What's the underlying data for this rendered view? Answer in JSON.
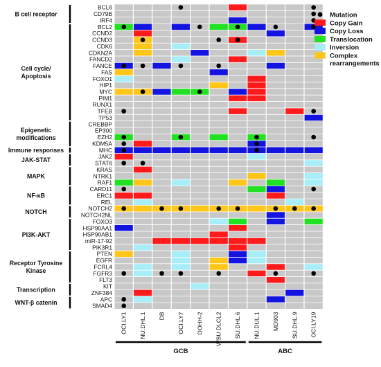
{
  "chart_data": {
    "type": "heatmap",
    "legend": {
      "placement": "top-right",
      "items": [
        {
          "key": "M",
          "label": "Mutation",
          "kind": "dot",
          "color": "#000000"
        },
        {
          "key": "G",
          "label": "Copy Gain",
          "kind": "box",
          "color": "#ff1b1b"
        },
        {
          "key": "L",
          "label": "Copy Loss",
          "kind": "box",
          "color": "#1414e0"
        },
        {
          "key": "T",
          "label": "Translocation",
          "kind": "box",
          "color": "#22e022"
        },
        {
          "key": "I",
          "label": "Inversion",
          "kind": "box",
          "color": "#a8eef8"
        },
        {
          "key": "C",
          "label": "Complex rearrangements",
          "kind": "box",
          "color": "#ffc61a"
        }
      ]
    },
    "colors": {
      "background": "#c8c8c8",
      "grid": "#ffffff"
    },
    "cell_lines": [
      "OCI.LY1",
      "NU.DHL.1",
      "DB",
      "OCI.LY7",
      "DOHH-2",
      "WSU DLCL2",
      "SU.DHL.6",
      "NU.DUL.1",
      "MD903",
      "SU.DHL.9",
      "OCI.LY19"
    ],
    "groups": [
      {
        "label": "GCB",
        "columns": [
          0,
          6
        ]
      },
      {
        "label": "ABC",
        "columns": [
          7,
          10
        ]
      }
    ],
    "genes": [
      "BCL6",
      "CD79B",
      "IRF4",
      "BCL2",
      "CCND2",
      "CCND3",
      "CDK6",
      "CDKN2A",
      "FANCD2",
      "FANCE",
      "FAS",
      "FOXO1",
      "HIP1",
      "MYC",
      "PIM1",
      "RUNX1",
      "TFEB",
      "TP53",
      "CREBBP",
      "EP300",
      "EZH2",
      "KDM5A",
      "MHC",
      "JAK2",
      "STAT6",
      "KRAS",
      "NTRK1",
      "RAF1",
      "CARD11",
      "ERC1",
      "REL",
      "NOTCH2",
      "NOTCH2NL",
      "FOXO3",
      "HSP90AA1",
      "HSP90AB1",
      "miR-17-92",
      "PIK3R1",
      "PTEN",
      "EGFR",
      "FCRL4",
      "FGFR3",
      "FLT3",
      "KIT",
      "ZNF384",
      "APC",
      "SMAD4"
    ],
    "categories": [
      {
        "label": "B cell receptor",
        "rows": [
          0,
          2
        ]
      },
      {
        "label": "Cell cycle/ Apoptosis",
        "rows": [
          3,
          17
        ]
      },
      {
        "label": "Epigenetic modifications",
        "rows": [
          18,
          21
        ]
      },
      {
        "label": "Immune responses",
        "rows": [
          22,
          22
        ]
      },
      {
        "label": "JAK-STAT",
        "rows": [
          23,
          24
        ]
      },
      {
        "label": "MAPK",
        "rows": [
          25,
          27
        ]
      },
      {
        "label": "NF-κB",
        "rows": [
          28,
          30
        ]
      },
      {
        "label": "NOTCH",
        "rows": [
          31,
          32
        ]
      },
      {
        "label": "PI3K-AKT",
        "rows": [
          33,
          37
        ]
      },
      {
        "label": "Receptor Tyrosine Kinase",
        "rows": [
          38,
          42
        ]
      },
      {
        "label": "Transcription",
        "rows": [
          43,
          44
        ]
      },
      {
        "label": "WNT-β catenin",
        "rows": [
          45,
          46
        ]
      }
    ],
    "fills": [
      "......G....",
      "...........",
      "......L....",
      "TL.L.TTL..L",
      ".G......L..",
      ".C....G....",
      ".C.I.......",
      ".C..L..IC..",
      "...I..G....",
      "L.L.....L..",
      "C....L.....",
      "I......G...",
      ".....C.G...",
      "CCLTT.LG...",
      "......GG...",
      "...........",
      "......G..G.",
      "..........L",
      "...........",
      "...........",
      "T..T.T.T...",
      ".G.....L...",
      "LLLLLLLLLLL",
      "G......I...",
      "..........I",
      ".G.........",
      ".......C..I",
      "TC.I..C.T.I",
      ".......TL..",
      "GG......G..",
      ".I.......I.",
      "CCCCCCCCCCC",
      "........L..",
      ".....IT.L.T",
      "L.....G....",
      ".....G.....",
      "..GGGGGG...",
      ".I....G....",
      "C..I..LI...",
      "...I.CLI...",
      ".I.I.C..G.I",
      ".I.....G...",
      "........G..",
      "....I......",
      ".G.......L.",
      ".I......L..",
      "..........."
    ],
    "mutations": [
      "...M......M",
      "..........M",
      "..........M",
      "M...M.M.M.M",
      "...........",
      ".M...MM....",
      "...........",
      "...........",
      "...........",
      "MM.M.M.....",
      "...........",
      "...........",
      "...........",
      ".M..M......",
      "...........",
      "...........",
      "M.........M",
      "...........",
      "...........",
      "...........",
      "M..M...M..M",
      "M......M...",
      "M......M...",
      "...........",
      "MM.........",
      "...........",
      "...........",
      "...........",
      "M.........M",
      "...........",
      "...........",
      "M.MM.MM.MMM",
      "...........",
      "...........",
      "...........",
      "...........",
      "...........",
      "...........",
      "...........",
      "...........",
      "...........",
      "M.MM.M..M.M",
      "...........",
      "...........",
      "...........",
      "M..........",
      "M.........."
    ]
  }
}
